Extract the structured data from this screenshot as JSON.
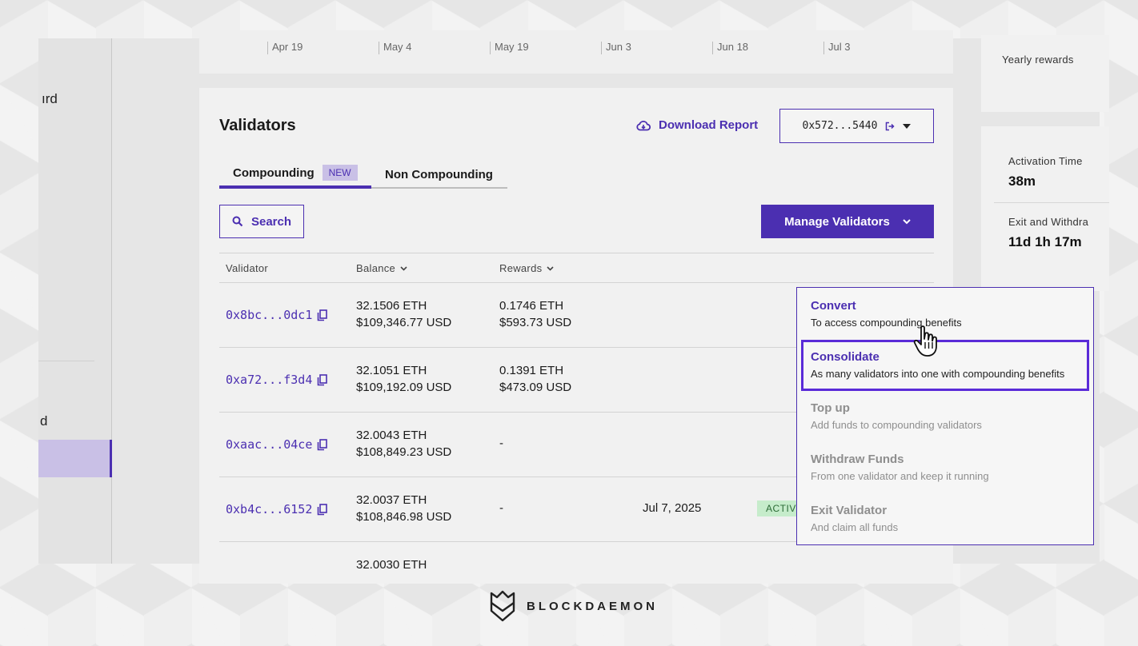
{
  "chart": {
    "ticks": [
      "Apr 19",
      "May 4",
      "May 19",
      "Jun 3",
      "Jun 18",
      "Jul 3"
    ]
  },
  "sidebar": {
    "fragment_top": "ırd",
    "fragment_bottom": "d"
  },
  "right_cards": {
    "yearly_rewards_label": "Yearly rewards",
    "activation_time_label": "Activation Time",
    "activation_time_value": "38m",
    "exit_label": "Exit and Withdra",
    "exit_value": "11d 1h 17m"
  },
  "validators": {
    "title": "Validators",
    "download_label": "Download Report",
    "address": "0x572...5440",
    "tabs": {
      "compounding": "Compounding",
      "new_badge": "NEW",
      "non_compounding": "Non Compounding"
    },
    "search_label": "Search",
    "manage_label": "Manage Validators",
    "columns": {
      "validator": "Validator",
      "balance": "Balance",
      "rewards": "Rewards"
    },
    "rows": [
      {
        "address": "0x8bc...0dc1",
        "balance_eth": "32.1506 ETH",
        "balance_usd": "$109,346.77 USD",
        "rewards_eth": "0.1746 ETH",
        "rewards_usd": "$593.73 USD"
      },
      {
        "address": "0xa72...f3d4",
        "balance_eth": "32.1051 ETH",
        "balance_usd": "$109,192.09 USD",
        "rewards_eth": "0.1391 ETH",
        "rewards_usd": "$473.09 USD"
      },
      {
        "address": "0xaac...04ce",
        "balance_eth": "32.0043 ETH",
        "balance_usd": "$108,849.23 USD",
        "rewards_eth": "-"
      },
      {
        "address": "0xb4c...6152",
        "balance_eth": "32.0037 ETH",
        "balance_usd": "$108,846.98 USD",
        "rewards_eth": "-",
        "date": "Jul 7, 2025",
        "status": "ACTIVE"
      },
      {
        "balance_eth": "32.0030 ETH"
      }
    ]
  },
  "menu": {
    "items": [
      {
        "title": "Convert",
        "desc": "To access compounding benefits"
      },
      {
        "title": "Consolidate",
        "desc": "As many validators into one with compounding benefits"
      },
      {
        "title": "Top up",
        "desc": "Add funds to compounding validators"
      },
      {
        "title": "Withdraw Funds",
        "desc": "From one validator and keep it running"
      },
      {
        "title": "Exit Validator",
        "desc": "And claim all funds"
      }
    ]
  },
  "footer": {
    "brand": "BLOCKDAEMON"
  },
  "colors": {
    "accent": "#4b2fb1",
    "active_badge_bg": "#c6eccb",
    "new_badge_bg": "#c9c0e6"
  }
}
